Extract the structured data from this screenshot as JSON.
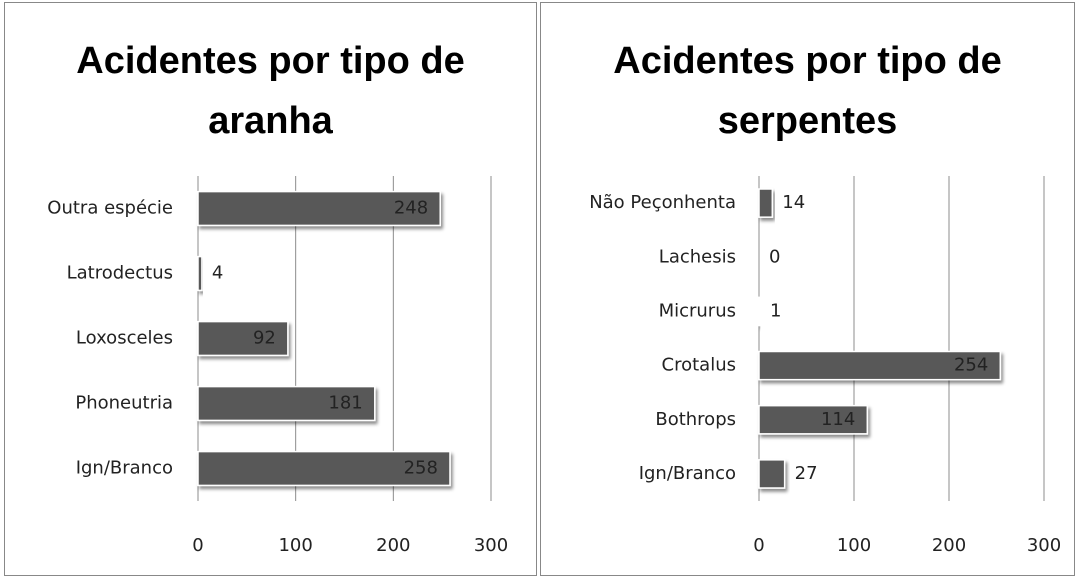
{
  "chart_data": [
    {
      "type": "bar",
      "orientation": "horizontal",
      "title": "Acidentes por tipo de aranha",
      "categories": [
        "Outra espécie",
        "Latrodectus",
        "Loxosceles",
        "Phoneutria",
        "Ign/Branco"
      ],
      "values": [
        248,
        4,
        92,
        181,
        258
      ],
      "color": "#595959",
      "xlim": [
        0,
        300
      ],
      "xticks": [
        0,
        100,
        200,
        300
      ],
      "grid": true
    },
    {
      "type": "bar",
      "orientation": "horizontal",
      "title": "Acidentes por tipo de serpentes",
      "categories": [
        "Não Peçonhenta",
        "Lachesis",
        "Micrurus",
        "Crotalus",
        "Bothrops",
        "Ign/Branco"
      ],
      "values": [
        14,
        0,
        1,
        254,
        114,
        27
      ],
      "color": "#595959",
      "xlim": [
        0,
        300
      ],
      "xticks": [
        0,
        100,
        200,
        300
      ],
      "grid": true
    }
  ]
}
